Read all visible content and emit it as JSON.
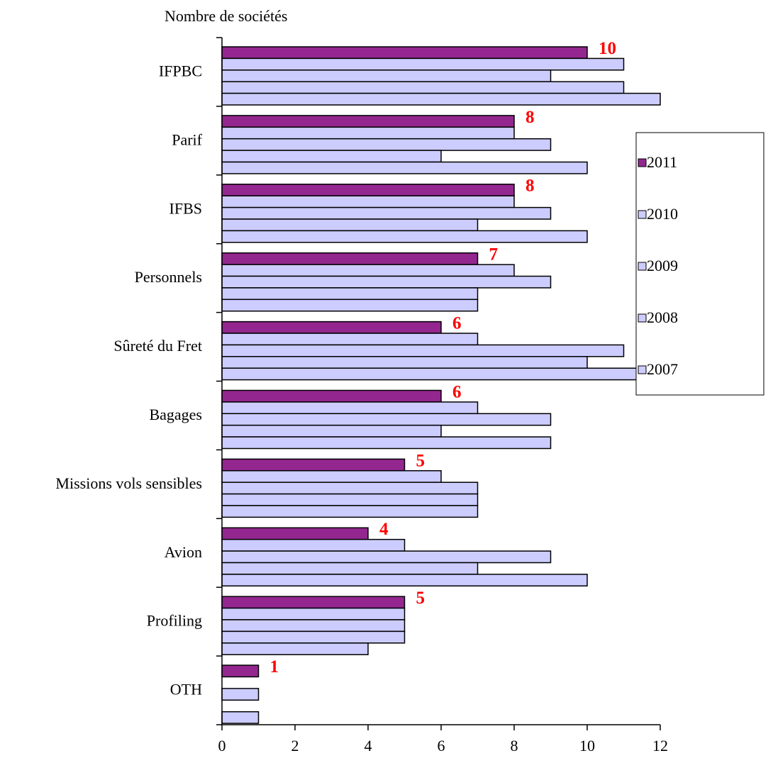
{
  "chart_data": {
    "type": "barh",
    "axis_label": "Nombre de sociétés",
    "categories": [
      "IFPBC",
      "Parif",
      "IFBS",
      "Personnels",
      "Sûreté du Fret",
      "Bagages",
      "Missions vols sensibles",
      "Avion",
      "Profiling",
      "OTH"
    ],
    "series": [
      {
        "name": "2011",
        "color": "#93278f",
        "values": [
          10,
          8,
          8,
          7,
          6,
          6,
          5,
          4,
          5,
          1
        ]
      },
      {
        "name": "2010",
        "color": "#ccccff",
        "values": [
          11,
          8,
          8,
          8,
          7,
          7,
          6,
          5,
          5,
          0
        ]
      },
      {
        "name": "2009",
        "color": "#ccccff",
        "values": [
          9,
          9,
          9,
          9,
          11,
          9,
          7,
          9,
          5,
          1
        ]
      },
      {
        "name": "2008",
        "color": "#ccccff",
        "values": [
          11,
          6,
          7,
          7,
          10,
          6,
          7,
          7,
          5,
          0
        ]
      },
      {
        "name": "2007",
        "color": "#ccccff",
        "values": [
          12,
          10,
          10,
          7,
          12,
          9,
          7,
          10,
          4,
          1
        ]
      }
    ],
    "data_labels_series": 0,
    "data_label_color": "#ff0000",
    "xlim": [
      0,
      12
    ],
    "xticks": [
      0,
      2,
      4,
      6,
      8,
      10,
      12
    ],
    "legend": "right"
  }
}
